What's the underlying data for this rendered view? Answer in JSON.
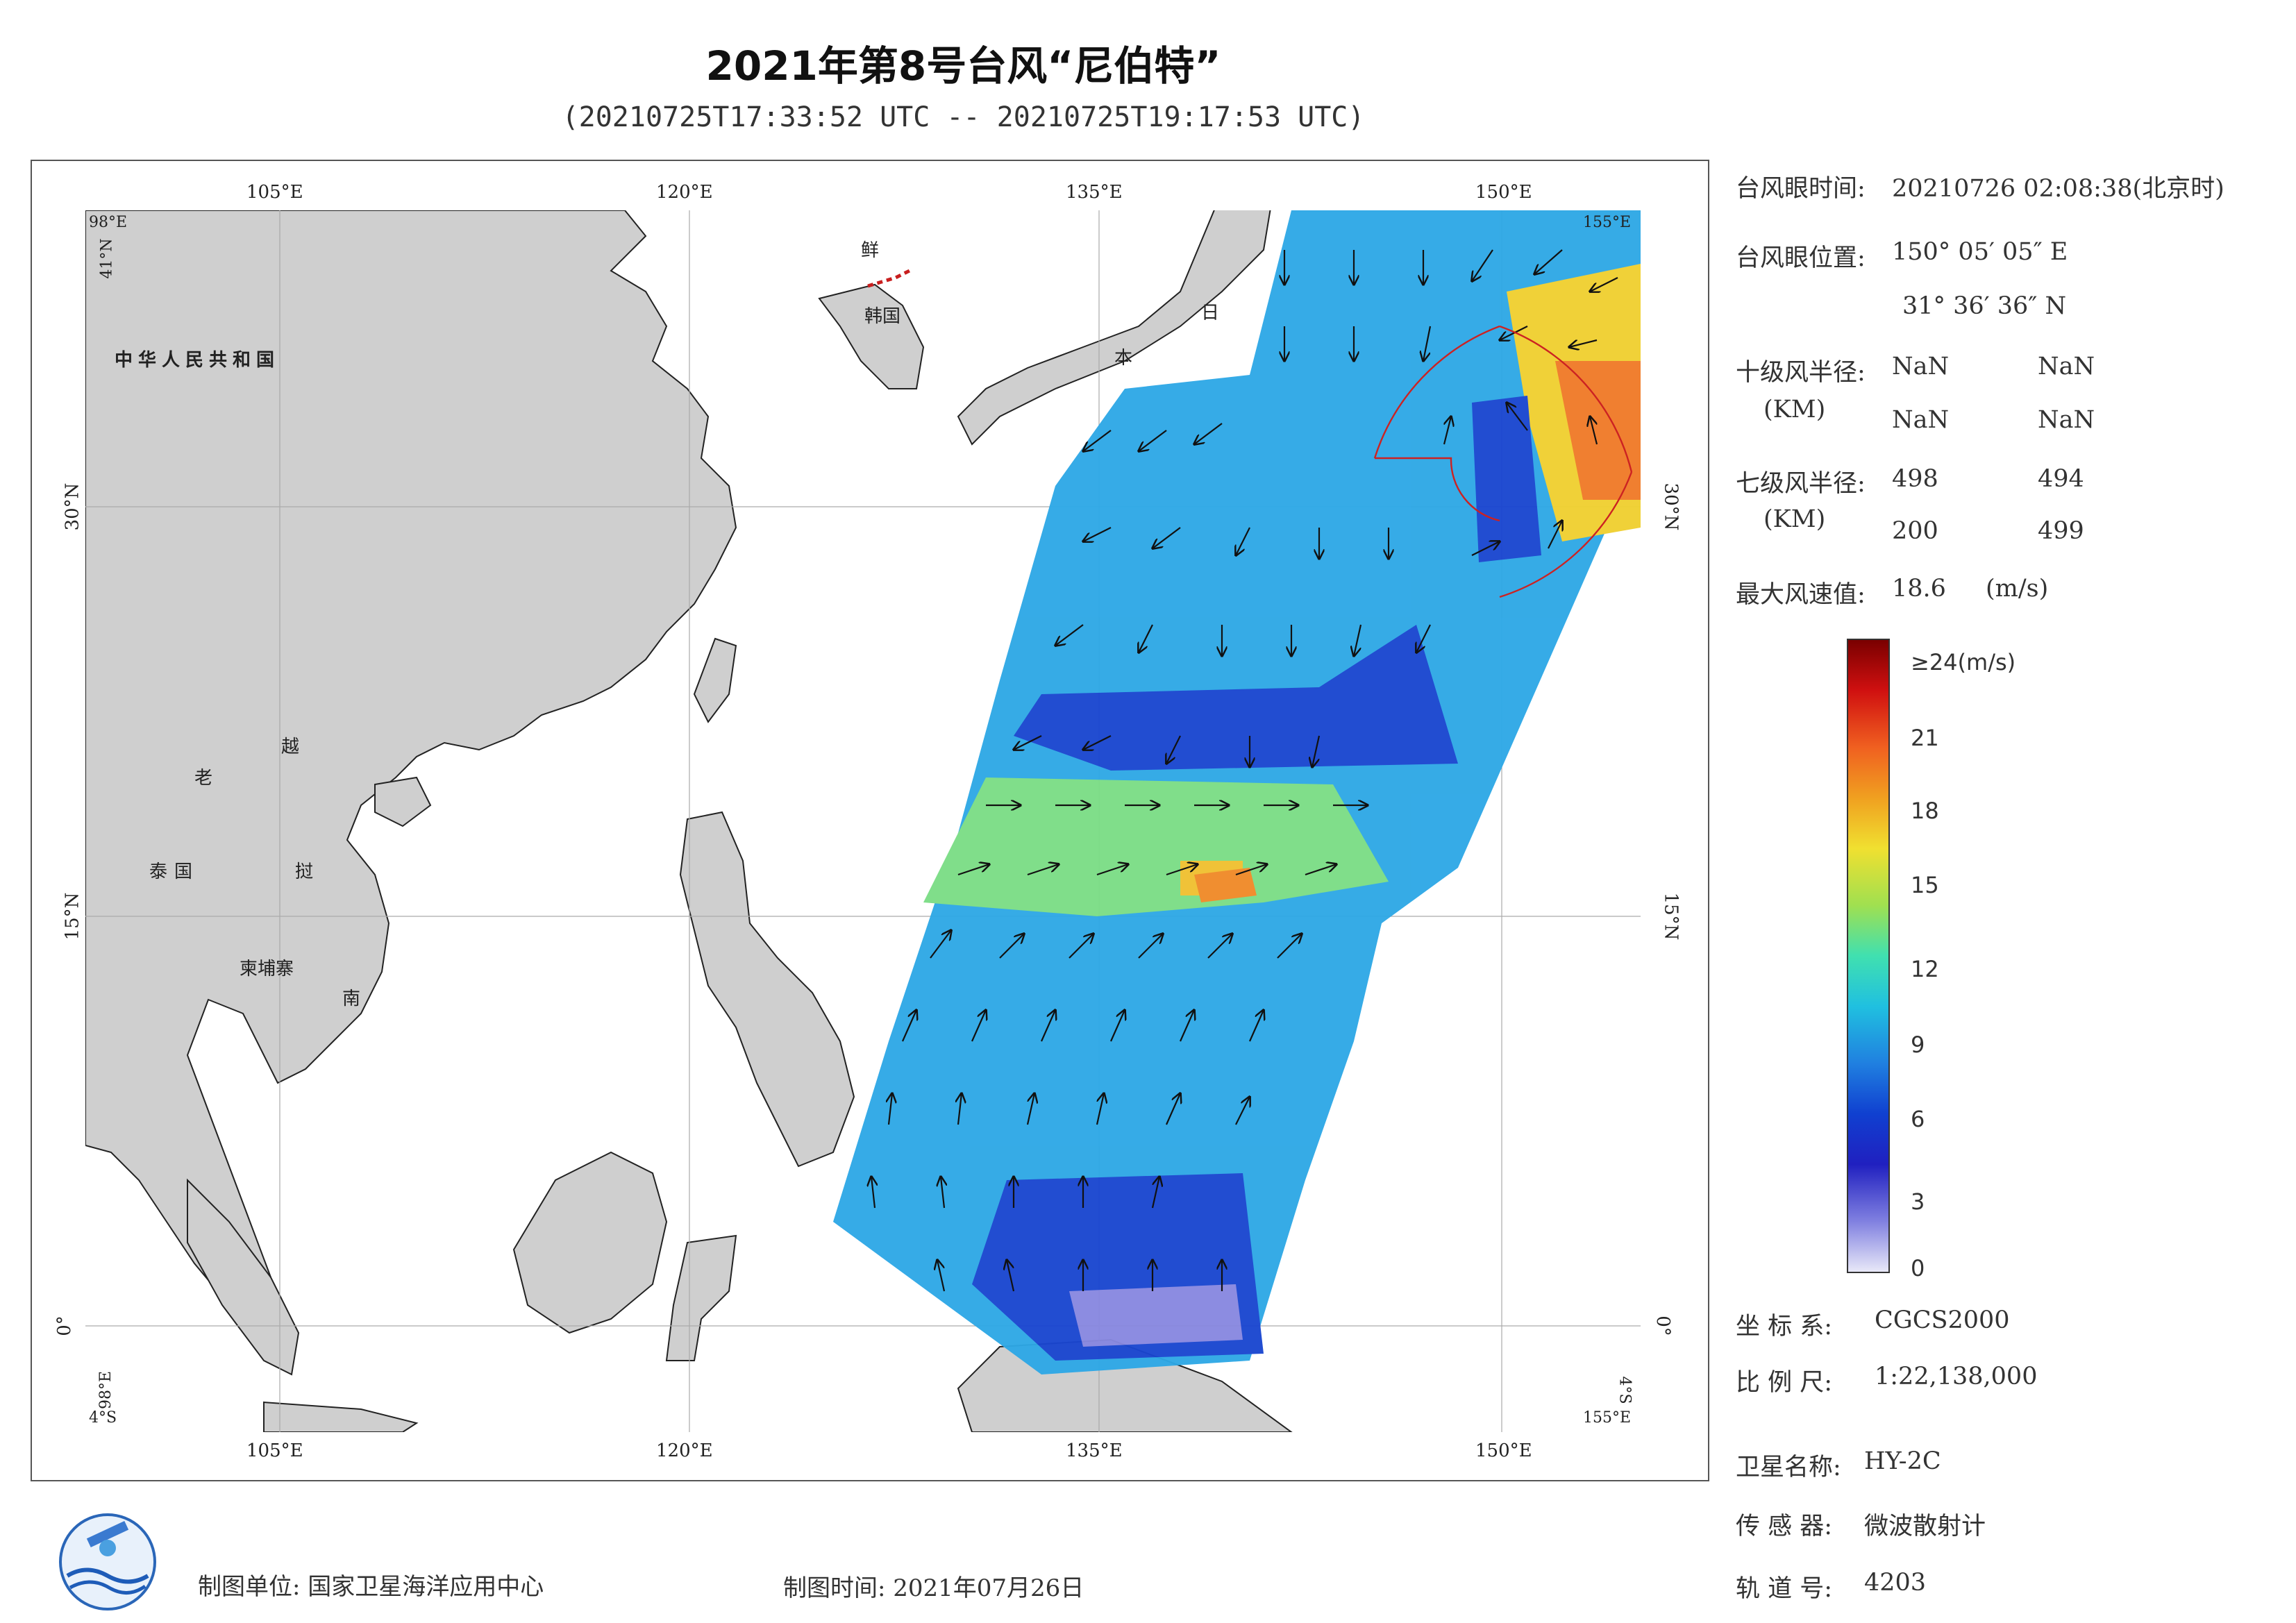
{
  "header": {
    "title": "2021年第8号台风“尼伯特”",
    "subtitle": "(20210725T17:33:52 UTC -- 20210725T19:17:53 UTC)"
  },
  "map": {
    "lon_labels": [
      "105°E",
      "120°E",
      "135°E",
      "150°E"
    ],
    "lat_labels_left": [
      "30°N",
      "15°N",
      "0°"
    ],
    "lat_labels_right": [
      "30°N",
      "15°N",
      "0°"
    ],
    "corner_labels": {
      "tl_lon": "98°E",
      "tl_lat": "41°N",
      "bl_lon": "98°E",
      "bl_lat": "4°S",
      "tr_lon": "155°E",
      "br_lon": "155°E",
      "br_lat": "4°S"
    },
    "place_labels": {
      "china": "中华人民共和国",
      "dprk": "鲜",
      "korea": "韩国",
      "japan_ri": "日",
      "japan_ben": "本",
      "laos": "老",
      "vietnam_yue": "越",
      "vietnam_nan": "南",
      "thailand": "泰国",
      "cambodia": "柬埔寨",
      "tai": "挝"
    },
    "colors": {
      "land": "#cfcfcf",
      "ocean": "#ffffff",
      "storm_circle": "#cc2222"
    }
  },
  "info": {
    "eye_time_label": "台风眼时间:",
    "eye_time_value": "20210726 02:08:38(北京时)",
    "eye_pos_label": "台风眼位置:",
    "eye_pos_lon": "150° 05′ 05″ E",
    "eye_pos_lat": "31° 36′ 36″ N",
    "r10_label": "十级风半径:",
    "r10_unit": "(KM)",
    "r10_values": [
      "NaN",
      "NaN",
      "NaN",
      "NaN"
    ],
    "r7_label": "七级风半径:",
    "r7_unit": "(KM)",
    "r7_values": [
      "498",
      "494",
      "200",
      "499"
    ],
    "max_wind_label": "最大风速值:",
    "max_wind_value": "18.6",
    "max_wind_unit": "(m/s)"
  },
  "colorbar": {
    "top_label": "≥24(m/s)",
    "ticks": [
      "21",
      "18",
      "15",
      "12",
      "9",
      "6",
      "3",
      "0"
    ],
    "colors": [
      "#7a0000",
      "#d01010",
      "#f06020",
      "#f0a020",
      "#f0e030",
      "#a0e050",
      "#40e0b0",
      "#20c0e0",
      "#2080e0",
      "#1040d0",
      "#2020c0",
      "#8080e0",
      "#e8e8f8"
    ]
  },
  "meta": {
    "crs_label": "坐 标 系:",
    "crs_value": "CGCS2000",
    "scale_label": "比 例 尺:",
    "scale_value": "1:22,138,000",
    "sat_label": "卫星名称:",
    "sat_value": "HY-2C",
    "sensor_label": "传 感 器:",
    "sensor_value": "微波散射计",
    "orbit_label": "轨 道 号:",
    "orbit_value": "4203"
  },
  "footer": {
    "producer": "制图单位: 国家卫星海洋应用中心",
    "date": "制图时间: 2021年07月26日"
  },
  "icons": {
    "logo": "nsoas-logo-icon"
  }
}
